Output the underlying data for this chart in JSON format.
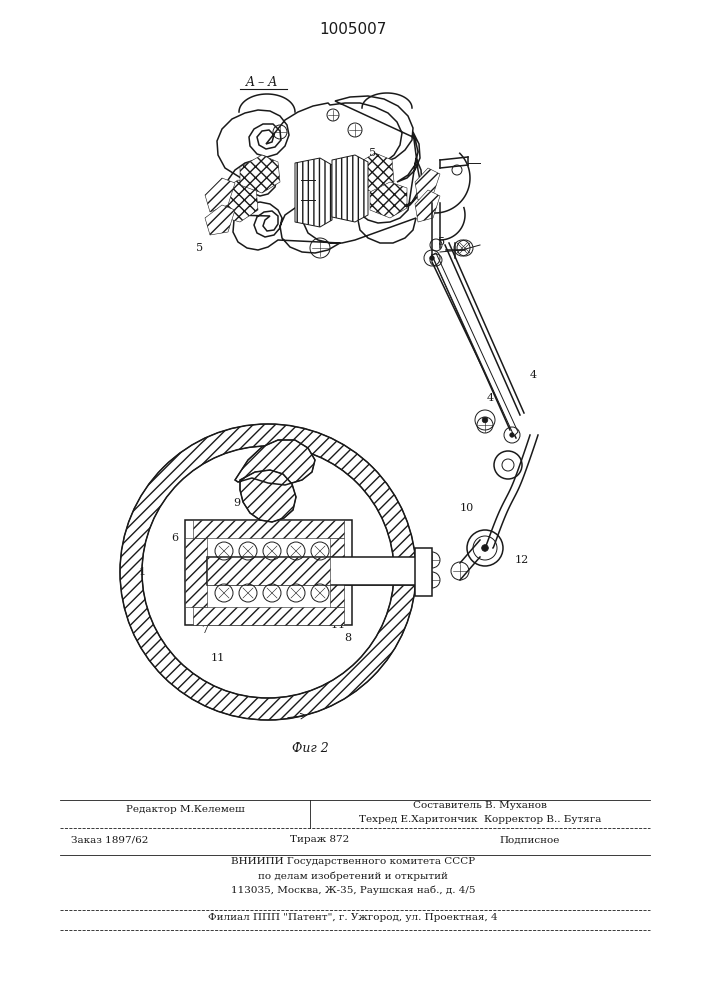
{
  "title": "1005007",
  "section_label": "A – A",
  "fig_label": "Фиг 2",
  "bg": "#ffffff",
  "lc": "#1a1a1a",
  "footer": {
    "line1_left": "Редактор М.Келемеш",
    "line1_center": "Составитель В. Муханов",
    "line2_center": "Техред Е.Харитончик  Корректор В.. Бутяга",
    "line3_left": "Заказ 1897/62",
    "line3_center": "Тираж 872",
    "line3_right": "Подписное",
    "line4": "ВНИИПИ Государственного комитета СССР",
    "line5": "по делам изобретений и открытий",
    "line6": "113035, Москва, Ж-35, Раушская наб., д. 4/5",
    "line7": "Филиал ППП \"Патент\", г. Ужгород, ул. Проектная, 4"
  }
}
